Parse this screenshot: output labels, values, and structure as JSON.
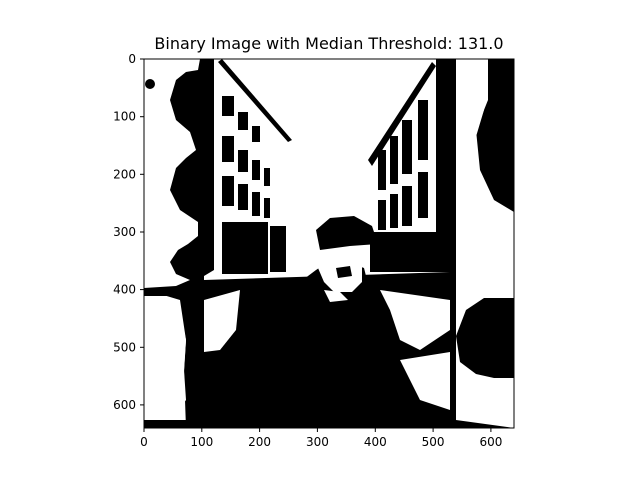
{
  "chart_data": {
    "type": "image",
    "title": "Binary Image with Median Threshold: 131.0",
    "xlabel": "",
    "ylabel": "",
    "xlim": [
      0,
      640
    ],
    "ylim": [
      640,
      0
    ],
    "x_ticks": [
      0,
      100,
      200,
      300,
      400,
      500,
      600
    ],
    "y_ticks": [
      0,
      100,
      200,
      300,
      400,
      500,
      600
    ],
    "x_tick_labels": [
      "0",
      "100",
      "200",
      "300",
      "400",
      "500",
      "600"
    ],
    "y_tick_labels": [
      "0",
      "100",
      "200",
      "300",
      "400",
      "500",
      "600"
    ],
    "colormap": "binary (black / white)",
    "grid": false
  }
}
